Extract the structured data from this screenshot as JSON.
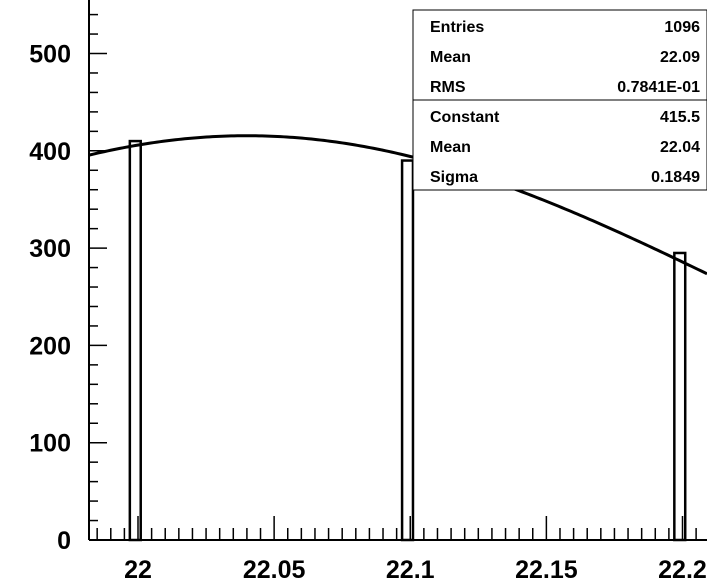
{
  "chart_data": {
    "type": "bar",
    "title": "",
    "xlabel": "",
    "ylabel": "",
    "xlim": [
      21.982,
      22.209
    ],
    "ylim": [
      0,
      555
    ],
    "x_ticks": [
      "22",
      "22.05",
      "22.1",
      "22.15",
      "22.2"
    ],
    "y_ticks": [
      "0",
      "100",
      "200",
      "300",
      "400",
      "500"
    ],
    "bins": [
      {
        "x_low": 21.997,
        "x_high": 22.001,
        "value": 410
      },
      {
        "x_low": 22.097,
        "x_high": 22.101,
        "value": 390
      },
      {
        "x_low": 22.197,
        "x_high": 22.201,
        "value": 295
      }
    ],
    "fit": {
      "function": "gaus",
      "constant": 415.5,
      "mean": 22.04,
      "sigma": 0.1849
    },
    "stats_box": {
      "rows": [
        {
          "label": "Entries",
          "value": "1096"
        },
        {
          "label": "Mean",
          "value": "22.09"
        },
        {
          "label": "RMS",
          "value": "0.7841E-01"
        }
      ],
      "fit_rows": [
        {
          "label": "Constant",
          "value": "415.5"
        },
        {
          "label": "Mean",
          "value": "22.04"
        },
        {
          "label": "Sigma",
          "value": "0.1849"
        }
      ]
    }
  }
}
